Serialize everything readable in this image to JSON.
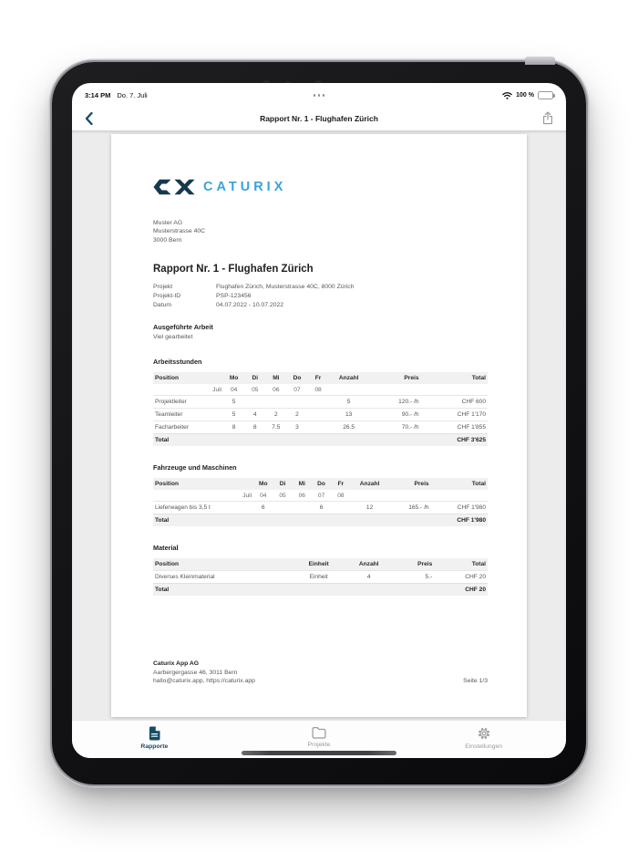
{
  "colors": {
    "accent_navy": "#174A63",
    "logo_mark_navy": "#16394E",
    "logo_blue": "#38A3DA",
    "inactive_gray": "#9A9AA0",
    "content_bg": "#ECECEC",
    "table_header_bg": "#F1F1F1"
  },
  "status_bar": {
    "time": "3:14 PM",
    "date": "Do. 7. Juli",
    "battery": "100 %"
  },
  "nav_bar": {
    "title": "Rapport Nr. 1 - Flughafen Zürich"
  },
  "document": {
    "logo_wordmark": "CATURIX",
    "recipient": [
      "Muster AG",
      "Musterstrasse 40C",
      "3000 Bern"
    ],
    "title": "Rapport Nr. 1 - Flughafen Zürich",
    "meta": [
      {
        "label": "Projekt",
        "value": "Flughafen Zürich, Musterstrasse 40C, 8000 Zürich"
      },
      {
        "label": "Projekt-ID",
        "value": "PSP-123456"
      },
      {
        "label": "Datum",
        "value": "04.07.2022 - 10.07.2022"
      }
    ],
    "work": {
      "title": "Ausgeführte Arbeit",
      "text": "Viel gearbeitet"
    },
    "sections": [
      {
        "title": "Arbeitsstunden",
        "table": {
          "widths": [
            21,
            6.3,
            6.3,
            6.3,
            6.3,
            6.3,
            12,
            15.5,
            20
          ],
          "aligns": [
            "left",
            "center",
            "center",
            "center",
            "center",
            "center",
            "center",
            "right",
            "right"
          ],
          "headers": [
            "Position",
            "Mo",
            "Di",
            "Mi",
            "Do",
            "Fr",
            "Anzahl",
            "Preis",
            "Total"
          ],
          "subrow": [
            "Juli",
            "04",
            "05",
            "06",
            "07",
            "08",
            "",
            "",
            ""
          ],
          "rows": [
            [
              "Projektleiter",
              "5",
              "",
              "",
              "",
              "",
              "5",
              "120.- /h",
              "CHF 600"
            ],
            [
              "Teamleiter",
              "5",
              "4",
              "2",
              "2",
              "",
              "13",
              "90.- /h",
              "CHF 1'170"
            ],
            [
              "Facharbeiter",
              "8",
              "8",
              "7.5",
              "3",
              "",
              "26.5",
              "70.- /h",
              "CHF 1'855"
            ]
          ],
          "total_label": "Total",
          "total_value": "CHF 3'625"
        }
      },
      {
        "title": "Fahrzeuge und Maschinen",
        "table": {
          "widths": [
            30,
            5.8,
            5.8,
            5.8,
            5.8,
            5.8,
            11.5,
            12.5,
            17
          ],
          "aligns": [
            "left",
            "center",
            "center",
            "center",
            "center",
            "center",
            "center",
            "right",
            "right"
          ],
          "headers": [
            "Position",
            "Mo",
            "Di",
            "Mi",
            "Do",
            "Fr",
            "Anzahl",
            "Preis",
            "Total"
          ],
          "subrow": [
            "Juli",
            "04",
            "05",
            "06",
            "07",
            "08",
            "",
            "",
            ""
          ],
          "rows": [
            [
              "Lieferwagen bis 3,5 t",
              "6",
              "",
              "",
              "6",
              "",
              "12",
              "165.- /h",
              "CHF 1'980"
            ]
          ],
          "total_label": "Total",
          "total_value": "CHF 1'980"
        }
      },
      {
        "title": "Material",
        "table": {
          "widths": [
            42,
            15,
            15,
            12,
            16
          ],
          "aligns": [
            "left",
            "center",
            "center",
            "right",
            "right"
          ],
          "headers": [
            "Position",
            "Einheit",
            "Anzahl",
            "Preis",
            "Total"
          ],
          "rows": [
            [
              "Diverses Kleinmaterial",
              "Einheit",
              "4",
              "5.-",
              "CHF 20"
            ]
          ],
          "total_label": "Total",
          "total_value": "CHF 20"
        }
      }
    ],
    "footer": {
      "company": "Caturix App AG",
      "address": "Aarbergergasse 46, 3011 Bern",
      "contact": "hallo@caturix.app, https://caturix.app",
      "page": "Seite 1/3"
    }
  },
  "tab_bar": {
    "items": [
      {
        "label": "Rapporte",
        "active": true
      },
      {
        "label": "Projekte",
        "active": false
      },
      {
        "label": "Einstellungen",
        "active": false
      }
    ]
  }
}
